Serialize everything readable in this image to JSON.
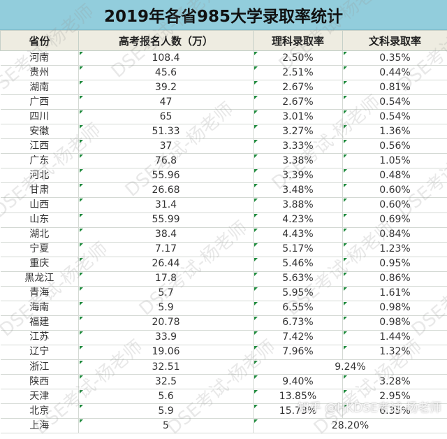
{
  "title": "2019年各省985大学录取率统计",
  "headers": [
    "省份",
    "高考报名人数（万）",
    "理科录取率",
    "文科录取率"
  ],
  "rows": [
    {
      "province": "河南",
      "applicants": "108.4",
      "science": "2.50%",
      "arts": "0.35%"
    },
    {
      "province": "贵州",
      "applicants": "45.6",
      "science": "2.51%",
      "arts": "0.44%"
    },
    {
      "province": "湖南",
      "applicants": "39.2",
      "science": "2.67%",
      "arts": "0.81%"
    },
    {
      "province": "广西",
      "applicants": "47",
      "science": "2.67%",
      "arts": "0.54%"
    },
    {
      "province": "四川",
      "applicants": "65",
      "science": "3.01%",
      "arts": "0.54%"
    },
    {
      "province": "安徽",
      "applicants": "51.33",
      "science": "3.27%",
      "arts": "1.36%"
    },
    {
      "province": "江西",
      "applicants": "37",
      "science": "3.33%",
      "arts": "0.56%"
    },
    {
      "province": "广东",
      "applicants": "76.8",
      "science": "3.38%",
      "arts": "1.05%"
    },
    {
      "province": "河北",
      "applicants": "55.96",
      "science": "3.39%",
      "arts": "0.48%"
    },
    {
      "province": "甘肃",
      "applicants": "26.68",
      "science": "3.48%",
      "arts": "0.60%"
    },
    {
      "province": "山西",
      "applicants": "31.4",
      "science": "3.88%",
      "arts": "0.60%"
    },
    {
      "province": "山东",
      "applicants": "55.99",
      "science": "4.23%",
      "arts": "0.69%"
    },
    {
      "province": "湖北",
      "applicants": "38.4",
      "science": "4.43%",
      "arts": "0.84%"
    },
    {
      "province": "宁夏",
      "applicants": "7.17",
      "science": "5.17%",
      "arts": "1.23%"
    },
    {
      "province": "重庆",
      "applicants": "26.44",
      "science": "5.46%",
      "arts": "0.95%"
    },
    {
      "province": "黑龙江",
      "applicants": "17.8",
      "science": "5.63%",
      "arts": "0.86%"
    },
    {
      "province": "青海",
      "applicants": "5.7",
      "science": "5.95%",
      "arts": "1.61%"
    },
    {
      "province": "海南",
      "applicants": "5.9",
      "science": "6.55%",
      "arts": "0.98%"
    },
    {
      "province": "福建",
      "applicants": "20.78",
      "science": "6.73%",
      "arts": "0.98%"
    },
    {
      "province": "江苏",
      "applicants": "33.9",
      "science": "7.42%",
      "arts": "1.44%"
    },
    {
      "province": "辽宁",
      "applicants": "19.06",
      "science": "7.96%",
      "arts": "1.32%"
    },
    {
      "province": "浙江",
      "applicants": "32.51",
      "combined": "9.24%"
    },
    {
      "province": "陕西",
      "applicants": "32.5",
      "science": "9.40%",
      "arts": "3.28%"
    },
    {
      "province": "天津",
      "applicants": "5.6",
      "science": "13.85%",
      "arts": "2.95%"
    },
    {
      "province": "北京",
      "applicants": "5.9",
      "science": "15.73%",
      "arts": "6.35%"
    },
    {
      "province": "上海",
      "applicants": "5",
      "combined": "28.20%"
    }
  ],
  "watermark": "DSE考试-杨老师",
  "credit": "知乎 @HKDSE考试-杨老师",
  "colors": {
    "title_bg": "#92cddc",
    "header_bg": "#eeece1",
    "flag": "#1e8a3c"
  }
}
